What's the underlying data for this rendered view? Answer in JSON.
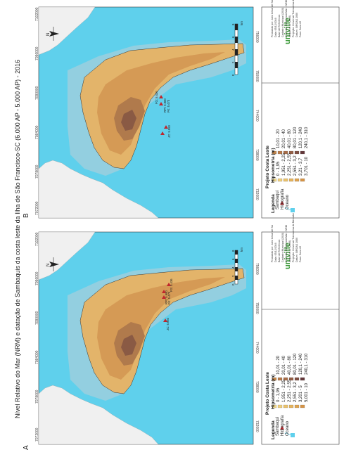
{
  "title": "Nível Relativo do Mar (NRM) e datação de Sambaquis da costa leste da Ilha de São Francisco-SC (6.000 AP - 5.000 AP) - 2016",
  "panels": [
    {
      "id": "A",
      "label": "A",
      "coords_top": [
        "7102000",
        "7096000",
        "7090000",
        "7084000",
        "7078000",
        "7072000"
      ],
      "coords_bottom": [
        "732000",
        "738000",
        "744000",
        "750000",
        "756000"
      ],
      "site_labels": [
        "FG: 5.436",
        "RPt: 5.980",
        "FK: 5.470",
        "JC: 5.950"
      ],
      "legend": {
        "hipsometria_values": [
          "0 - 1,95",
          "1,951 - 2,25",
          "2,251 - 2,55",
          "2,551 - 3,2",
          "3,201 - 5",
          "5,001 - 10",
          "10,01 - 20",
          "20,01 - 40",
          "40,01 - 80",
          "80,01 - 120",
          "120,1 - 240",
          "240,1 - 310"
        ],
        "hipsometria_colors": [
          "#f3dc8f",
          "#efcf7b",
          "#ebc26a",
          "#e6b45c",
          "#dfa44f",
          "#d79446",
          "#ca8a4c",
          "#b87a4a",
          "#a86d48",
          "#955e45",
          "#7f4e40",
          "#64383a"
        ]
      },
      "scale_ticks": [
        "0",
        "2",
        "4",
        "6",
        "8",
        "km"
      ]
    },
    {
      "id": "B",
      "label": "B",
      "coords_top": [
        "7102000",
        "7096000",
        "7090000",
        "7084000",
        "7078000",
        "7072000"
      ],
      "coords_bottom": [
        "732000",
        "738000",
        "744000",
        "750000",
        "756000"
      ],
      "site_labels": [
        "FG: 5.436",
        "RPt: 5.980",
        "FK: 5.470",
        "JC: 5.950"
      ],
      "legend": {
        "hipsometria_values": [
          "0 - 1,95",
          "1,951 - 2,25",
          "2,251 - 2,55",
          "2,551 - 3,2",
          "3,21 - 3,7",
          "3,701 - 10",
          "10,01 - 20",
          "20,01 - 40",
          "40,01 - 80",
          "80,01 - 120",
          "120,1 - 240",
          "240,1 - 310"
        ],
        "hipsometria_colors": [
          "#f3dc8f",
          "#efcf7b",
          "#ebc26a",
          "#e6b45c",
          "#dfa44f",
          "#d79446",
          "#ca8a4c",
          "#b87a4a",
          "#a86d48",
          "#955e45",
          "#7f4e40",
          "#64383a"
        ]
      },
      "scale_ticks": [
        "0",
        "2",
        "4",
        "6",
        "8",
        "km"
      ]
    }
  ],
  "legend_common": {
    "project": "Projeto Costa Leste",
    "legenda": "Legenda",
    "hipsometria": "Hipsometria (m)",
    "sambaqui": "Sambaqui",
    "hidrografia": "Hidrografia",
    "oceano": "Oceano"
  },
  "credits": {
    "logo": "univille",
    "lines": [
      "Produzido por: Julio Cesar de Sá",
      "Data: 05/12/2016",
      "Base de Referência:",
      "Cadastro Municipal (2010)",
      "Nível dos Referencial Mar - NRM",
      "Angulo et al. (2006)",
      "Projeção: Universal Transversa de Mercator",
      "Datum: SIRGAS 2000",
      "Fuso: Zona 22"
    ]
  },
  "colors": {
    "ocean": "#5fd0ec",
    "sea_low": "#93cfe0",
    "land_low": "#e3b46a",
    "land_mid": "#d59a55",
    "land_high": "#8a5a44",
    "mainland": "#f0f0f0",
    "site": "#c0262c"
  }
}
